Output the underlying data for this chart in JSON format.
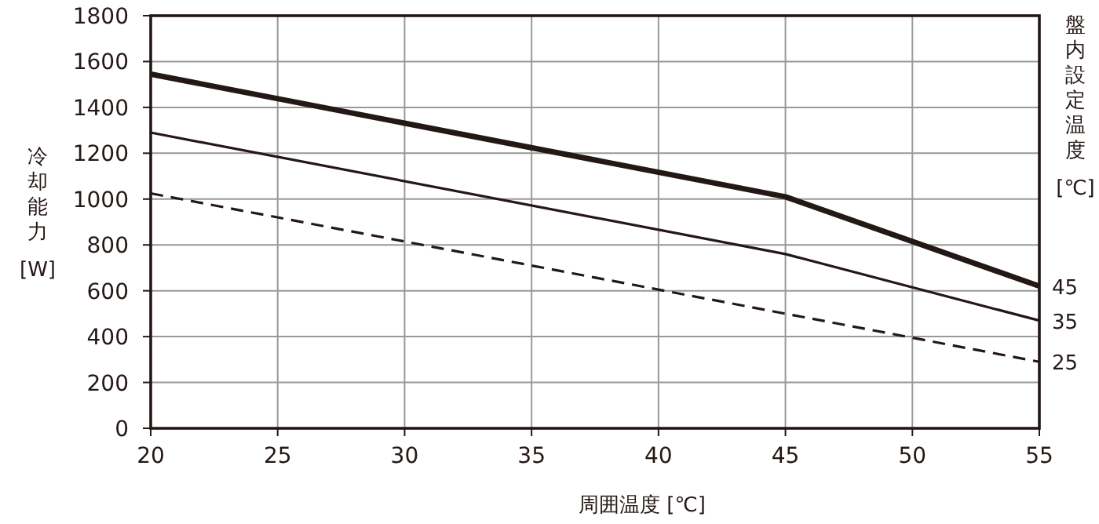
{
  "chart_data": {
    "type": "line",
    "xlabel": "周囲温度 [℃]",
    "ylabel": "冷却能力 [W]",
    "legend_title": "盤内設定温度 [℃]",
    "xlim": [
      20,
      55
    ],
    "xticks": [
      20,
      25,
      30,
      35,
      40,
      45,
      50,
      55
    ],
    "ylim": [
      0,
      1800
    ],
    "yticks": [
      0,
      200,
      400,
      600,
      800,
      1000,
      1200,
      1400,
      1600,
      1800
    ],
    "grid": true,
    "legend": "right",
    "marker": "none",
    "series": [
      {
        "name": "45",
        "color": "#231815",
        "x": [
          20,
          45,
          55
        ],
        "values": [
          1545,
          1010,
          620
        ],
        "line_style": "solid"
      },
      {
        "name": "35",
        "color": "#231815",
        "x": [
          20,
          45,
          55
        ],
        "values": [
          1290,
          760,
          470
        ],
        "line_style": "solid"
      },
      {
        "name": "25",
        "color": "#231815",
        "x": [
          20,
          55
        ],
        "values": [
          1025,
          290
        ],
        "line_style": "dashed"
      }
    ]
  }
}
